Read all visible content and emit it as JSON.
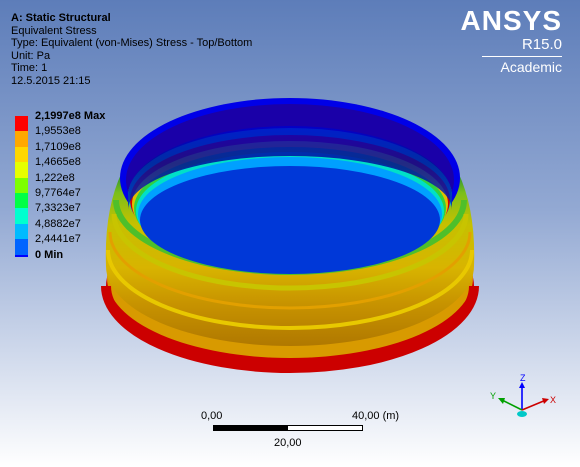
{
  "header": {
    "title": "A: Static Structural",
    "result": "Equivalent Stress",
    "type": "Type: Equivalent (von-Mises) Stress - Top/Bottom",
    "unit": "Unit: Pa",
    "time": "Time: 1",
    "date": "12.5.2015 21:15"
  },
  "brand": {
    "logo": "ANSYS",
    "version": "R15.0",
    "license": "Academic"
  },
  "legend": {
    "items": [
      {
        "label": "2,1997e8 Max",
        "color": "#ff0000",
        "bold": true
      },
      {
        "label": "1,9553e8",
        "color": "#ffa800",
        "bold": false
      },
      {
        "label": "1,7109e8",
        "color": "#ffd700",
        "bold": false
      },
      {
        "label": "1,4665e8",
        "color": "#e6ff00",
        "bold": false
      },
      {
        "label": "1,222e8",
        "color": "#7dff00",
        "bold": false
      },
      {
        "label": "9,7764e7",
        "color": "#00ff46",
        "bold": false
      },
      {
        "label": "7,3323e7",
        "color": "#00ffcf",
        "bold": false
      },
      {
        "label": "4,8882e7",
        "color": "#00bbff",
        "bold": false
      },
      {
        "label": "2,4441e7",
        "color": "#0064ff",
        "bold": false
      },
      {
        "label": "0 Min",
        "color": "#0000ff",
        "bold": true
      }
    ]
  },
  "scale": {
    "left_label": "0,00",
    "right_label": "40,00 (m)",
    "mid_label": "20,00"
  },
  "triad": {
    "x_label": "X",
    "y_label": "Y",
    "z_label": "Z"
  },
  "colors": {
    "background_top": "#5d7db9",
    "background_bottom": "#ffffff",
    "max": "#ff0000",
    "min": "#0000ff"
  }
}
